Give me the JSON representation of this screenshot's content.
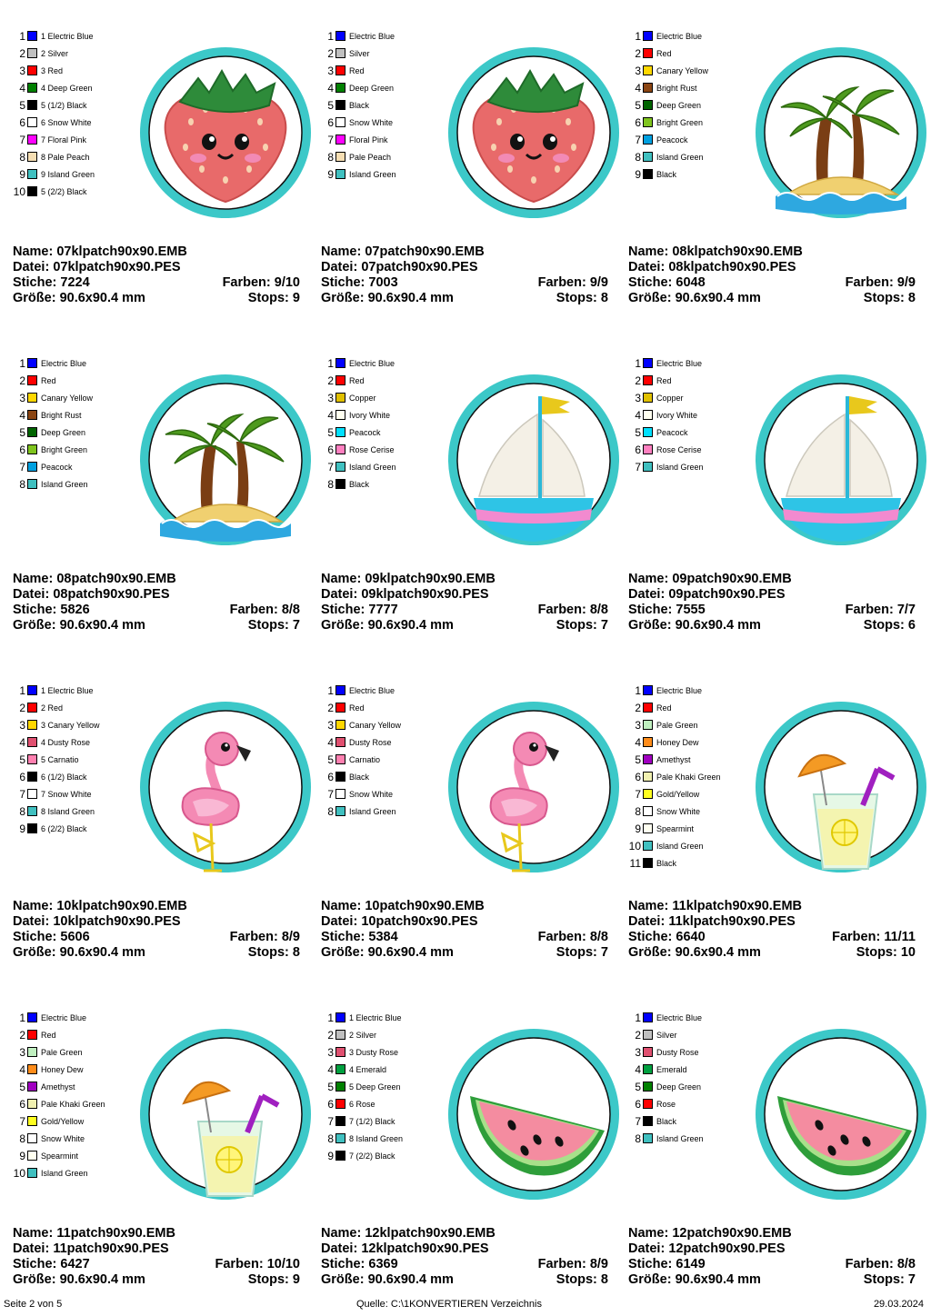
{
  "labels": {
    "name": "Name:",
    "file": "Datei:",
    "stitches": "Stiche:",
    "size": "Größe:",
    "colors": "Farben:",
    "stops": "Stops:"
  },
  "designs": [
    {
      "name": "07klpatch90x90.EMB",
      "file": "07klpatch90x90.PES",
      "stitches": "7224",
      "size": "90.6x90.4 mm",
      "colors": "9/10",
      "stops": "9",
      "motif": "strawberry",
      "palette": [
        {
          "n": "1",
          "color": "#0000FF",
          "label": "1 Electric Blue"
        },
        {
          "n": "2",
          "color": "#C0C0C0",
          "label": "2 Silver"
        },
        {
          "n": "3",
          "color": "#FF0000",
          "label": "3 Red"
        },
        {
          "n": "4",
          "color": "#008000",
          "label": "4 Deep Green"
        },
        {
          "n": "5",
          "color": "#000000",
          "label": "5 (1/2) Black"
        },
        {
          "n": "6",
          "color": "#FFFFFF",
          "label": "6 Snow White"
        },
        {
          "n": "7",
          "color": "#FF00FF",
          "label": "7 Floral Pink"
        },
        {
          "n": "8",
          "color": "#F5DEB3",
          "label": "8 Pale Peach"
        },
        {
          "n": "9",
          "color": "#40C0C0",
          "label": "9 Island Green"
        },
        {
          "n": "10",
          "color": "#000000",
          "label": "5 (2/2) Black"
        }
      ]
    },
    {
      "name": "07patch90x90.EMB",
      "file": "07patch90x90.PES",
      "stitches": "7003",
      "size": "90.6x90.4 mm",
      "colors": "9/9",
      "stops": "8",
      "motif": "strawberry",
      "palette": [
        {
          "n": "1",
          "color": "#0000FF",
          "label": "Electric Blue"
        },
        {
          "n": "2",
          "color": "#C0C0C0",
          "label": "Silver"
        },
        {
          "n": "3",
          "color": "#FF0000",
          "label": "Red"
        },
        {
          "n": "4",
          "color": "#008000",
          "label": "Deep Green"
        },
        {
          "n": "5",
          "color": "#000000",
          "label": "Black"
        },
        {
          "n": "6",
          "color": "#FFFFFF",
          "label": "Snow White"
        },
        {
          "n": "7",
          "color": "#FF00FF",
          "label": "Floral Pink"
        },
        {
          "n": "8",
          "color": "#F5DEB3",
          "label": "Pale Peach"
        },
        {
          "n": "9",
          "color": "#40C0C0",
          "label": "Island Green"
        }
      ]
    },
    {
      "name": "08klpatch90x90.EMB",
      "file": "08klpatch90x90.PES",
      "stitches": "6048",
      "size": "90.6x90.4 mm",
      "colors": "9/9",
      "stops": "8",
      "motif": "palm",
      "palette": [
        {
          "n": "1",
          "color": "#0000FF",
          "label": "Electric Blue"
        },
        {
          "n": "2",
          "color": "#FF0000",
          "label": "Red"
        },
        {
          "n": "3",
          "color": "#FFD700",
          "label": "Canary Yellow"
        },
        {
          "n": "4",
          "color": "#8B4513",
          "label": "Bright Rust"
        },
        {
          "n": "5",
          "color": "#006400",
          "label": "Deep Green"
        },
        {
          "n": "6",
          "color": "#7FC41E",
          "label": "Bright Green"
        },
        {
          "n": "7",
          "color": "#00A0E0",
          "label": "Peacock"
        },
        {
          "n": "8",
          "color": "#40C0C0",
          "label": "Island Green"
        },
        {
          "n": "9",
          "color": "#000000",
          "label": "Black"
        }
      ]
    },
    {
      "name": "08patch90x90.EMB",
      "file": "08patch90x90.PES",
      "stitches": "5826",
      "size": "90.6x90.4 mm",
      "colors": "8/8",
      "stops": "7",
      "motif": "palm",
      "palette": [
        {
          "n": "1",
          "color": "#0000FF",
          "label": "Electric Blue"
        },
        {
          "n": "2",
          "color": "#FF0000",
          "label": "Red"
        },
        {
          "n": "3",
          "color": "#FFD700",
          "label": "Canary Yellow"
        },
        {
          "n": "4",
          "color": "#8B4513",
          "label": "Bright Rust"
        },
        {
          "n": "5",
          "color": "#006400",
          "label": "Deep Green"
        },
        {
          "n": "6",
          "color": "#7FC41E",
          "label": "Bright Green"
        },
        {
          "n": "7",
          "color": "#00A0E0",
          "label": "Peacock"
        },
        {
          "n": "8",
          "color": "#40C0C0",
          "label": "Island Green"
        }
      ]
    },
    {
      "name": "09klpatch90x90.EMB",
      "file": "09klpatch90x90.PES",
      "stitches": "7777",
      "size": "90.6x90.4 mm",
      "colors": "8/8",
      "stops": "7",
      "motif": "boat",
      "palette": [
        {
          "n": "1",
          "color": "#0000FF",
          "label": "Electric Blue"
        },
        {
          "n": "2",
          "color": "#FF0000",
          "label": "Red"
        },
        {
          "n": "3",
          "color": "#E0C000",
          "label": "Copper"
        },
        {
          "n": "4",
          "color": "#FFFFF0",
          "label": "Ivory White"
        },
        {
          "n": "5",
          "color": "#00E0FF",
          "label": "Peacock"
        },
        {
          "n": "6",
          "color": "#FF80C0",
          "label": "Rose Cerise"
        },
        {
          "n": "7",
          "color": "#40C0C0",
          "label": "Island Green"
        },
        {
          "n": "8",
          "color": "#000000",
          "label": "Black"
        }
      ]
    },
    {
      "name": "09patch90x90.EMB",
      "file": "09patch90x90.PES",
      "stitches": "7555",
      "size": "90.6x90.4 mm",
      "colors": "7/7",
      "stops": "6",
      "motif": "boat",
      "palette": [
        {
          "n": "1",
          "color": "#0000FF",
          "label": "Electric Blue"
        },
        {
          "n": "2",
          "color": "#FF0000",
          "label": "Red"
        },
        {
          "n": "3",
          "color": "#E0C000",
          "label": "Copper"
        },
        {
          "n": "4",
          "color": "#FFFFF0",
          "label": "Ivory White"
        },
        {
          "n": "5",
          "color": "#00E0FF",
          "label": "Peacock"
        },
        {
          "n": "6",
          "color": "#FF80C0",
          "label": "Rose Cerise"
        },
        {
          "n": "7",
          "color": "#40C0C0",
          "label": "Island Green"
        }
      ]
    },
    {
      "name": "10klpatch90x90.EMB",
      "file": "10klpatch90x90.PES",
      "stitches": "5606",
      "size": "90.6x90.4 mm",
      "colors": "8/9",
      "stops": "8",
      "motif": "flamingo",
      "palette": [
        {
          "n": "1",
          "color": "#0000FF",
          "label": "1 Electric Blue"
        },
        {
          "n": "2",
          "color": "#FF0000",
          "label": "2 Red"
        },
        {
          "n": "3",
          "color": "#FFD700",
          "label": "3 Canary Yellow"
        },
        {
          "n": "4",
          "color": "#E05070",
          "label": "4 Dusty Rose"
        },
        {
          "n": "5",
          "color": "#FF80B0",
          "label": "5 Carnatio"
        },
        {
          "n": "6",
          "color": "#000000",
          "label": "6 (1/2) Black"
        },
        {
          "n": "7",
          "color": "#FFFFFF",
          "label": "7 Snow White"
        },
        {
          "n": "8",
          "color": "#40C0C0",
          "label": "8 Island Green"
        },
        {
          "n": "9",
          "color": "#000000",
          "label": "6 (2/2) Black"
        }
      ]
    },
    {
      "name": "10patch90x90.EMB",
      "file": "10patch90x90.PES",
      "stitches": "5384",
      "size": "90.6x90.4 mm",
      "colors": "8/8",
      "stops": "7",
      "motif": "flamingo",
      "palette": [
        {
          "n": "1",
          "color": "#0000FF",
          "label": "Electric Blue"
        },
        {
          "n": "2",
          "color": "#FF0000",
          "label": "Red"
        },
        {
          "n": "3",
          "color": "#FFD700",
          "label": "Canary Yellow"
        },
        {
          "n": "4",
          "color": "#E05070",
          "label": "Dusty Rose"
        },
        {
          "n": "5",
          "color": "#FF80B0",
          "label": "Carnatio"
        },
        {
          "n": "6",
          "color": "#000000",
          "label": "Black"
        },
        {
          "n": "7",
          "color": "#FFFFFF",
          "label": "Snow White"
        },
        {
          "n": "8",
          "color": "#40C0C0",
          "label": "Island Green"
        }
      ]
    },
    {
      "name": "11klpatch90x90.EMB",
      "file": "11klpatch90x90.PES",
      "stitches": "6640",
      "size": "90.6x90.4 mm",
      "colors": "11/11",
      "stops": "10",
      "motif": "lemonade",
      "palette": [
        {
          "n": "1",
          "color": "#0000FF",
          "label": "Electric Blue"
        },
        {
          "n": "2",
          "color": "#FF0000",
          "label": "Red"
        },
        {
          "n": "3",
          "color": "#C0F0C0",
          "label": "Pale Green"
        },
        {
          "n": "4",
          "color": "#FF8C1A",
          "label": "Honey Dew"
        },
        {
          "n": "5",
          "color": "#A000C0",
          "label": "Amethyst"
        },
        {
          "n": "6",
          "color": "#F0F0B0",
          "label": "Pale Khaki Green"
        },
        {
          "n": "7",
          "color": "#FFFF20",
          "label": "Gold/Yellow"
        },
        {
          "n": "8",
          "color": "#FFFFFF",
          "label": "Snow White"
        },
        {
          "n": "9",
          "color": "#FFFFF0",
          "label": "Spearmint"
        },
        {
          "n": "10",
          "color": "#40C0C0",
          "label": "Island Green"
        },
        {
          "n": "11",
          "color": "#000000",
          "label": "Black"
        }
      ]
    },
    {
      "name": "11patch90x90.EMB",
      "file": "11patch90x90.PES",
      "stitches": "6427",
      "size": "90.6x90.4 mm",
      "colors": "10/10",
      "stops": "9",
      "motif": "lemonade",
      "palette": [
        {
          "n": "1",
          "color": "#0000FF",
          "label": "Electric Blue"
        },
        {
          "n": "2",
          "color": "#FF0000",
          "label": "Red"
        },
        {
          "n": "3",
          "color": "#C0F0C0",
          "label": "Pale Green"
        },
        {
          "n": "4",
          "color": "#FF8C1A",
          "label": "Honey Dew"
        },
        {
          "n": "5",
          "color": "#A000C0",
          "label": "Amethyst"
        },
        {
          "n": "6",
          "color": "#F0F0B0",
          "label": "Pale Khaki Green"
        },
        {
          "n": "7",
          "color": "#FFFF20",
          "label": "Gold/Yellow"
        },
        {
          "n": "8",
          "color": "#FFFFFF",
          "label": "Snow White"
        },
        {
          "n": "9",
          "color": "#FFFFF0",
          "label": "Spearmint"
        },
        {
          "n": "10",
          "color": "#40C0C0",
          "label": "Island Green"
        }
      ]
    },
    {
      "name": "12klpatch90x90.EMB",
      "file": "12klpatch90x90.PES",
      "stitches": "6369",
      "size": "90.6x90.4 mm",
      "colors": "8/9",
      "stops": "8",
      "motif": "watermelon",
      "palette": [
        {
          "n": "1",
          "color": "#0000FF",
          "label": "1 Electric Blue"
        },
        {
          "n": "2",
          "color": "#C0C0C0",
          "label": "2 Silver"
        },
        {
          "n": "3",
          "color": "#E05070",
          "label": "3 Dusty Rose"
        },
        {
          "n": "4",
          "color": "#00A040",
          "label": "4 Emerald"
        },
        {
          "n": "5",
          "color": "#008000",
          "label": "5 Deep Green"
        },
        {
          "n": "6",
          "color": "#FF0000",
          "label": "6 Rose"
        },
        {
          "n": "7",
          "color": "#000000",
          "label": "7 (1/2) Black"
        },
        {
          "n": "8",
          "color": "#40C0C0",
          "label": "8 Island Green"
        },
        {
          "n": "9",
          "color": "#000000",
          "label": "7 (2/2) Black"
        }
      ]
    },
    {
      "name": "12patch90x90.EMB",
      "file": "12patch90x90.PES",
      "stitches": "6149",
      "size": "90.6x90.4 mm",
      "colors": "8/8",
      "stops": "7",
      "motif": "watermelon",
      "palette": [
        {
          "n": "1",
          "color": "#0000FF",
          "label": "Electric Blue"
        },
        {
          "n": "2",
          "color": "#C0C0C0",
          "label": "Silver"
        },
        {
          "n": "3",
          "color": "#E05070",
          "label": "Dusty Rose"
        },
        {
          "n": "4",
          "color": "#00A040",
          "label": "Emerald"
        },
        {
          "n": "5",
          "color": "#008000",
          "label": "Deep Green"
        },
        {
          "n": "6",
          "color": "#FF0000",
          "label": "Rose"
        },
        {
          "n": "7",
          "color": "#000000",
          "label": "Black"
        },
        {
          "n": "8",
          "color": "#40C0C0",
          "label": "Island Green"
        }
      ]
    }
  ],
  "footer": {
    "page": "Seite 2 von 5",
    "source": "Quelle: C:\\1KONVERTIEREN Verzeichnis",
    "date": "29.03.2024"
  },
  "colors": {
    "ring": "#3CC8C8",
    "outline": "#111111"
  }
}
